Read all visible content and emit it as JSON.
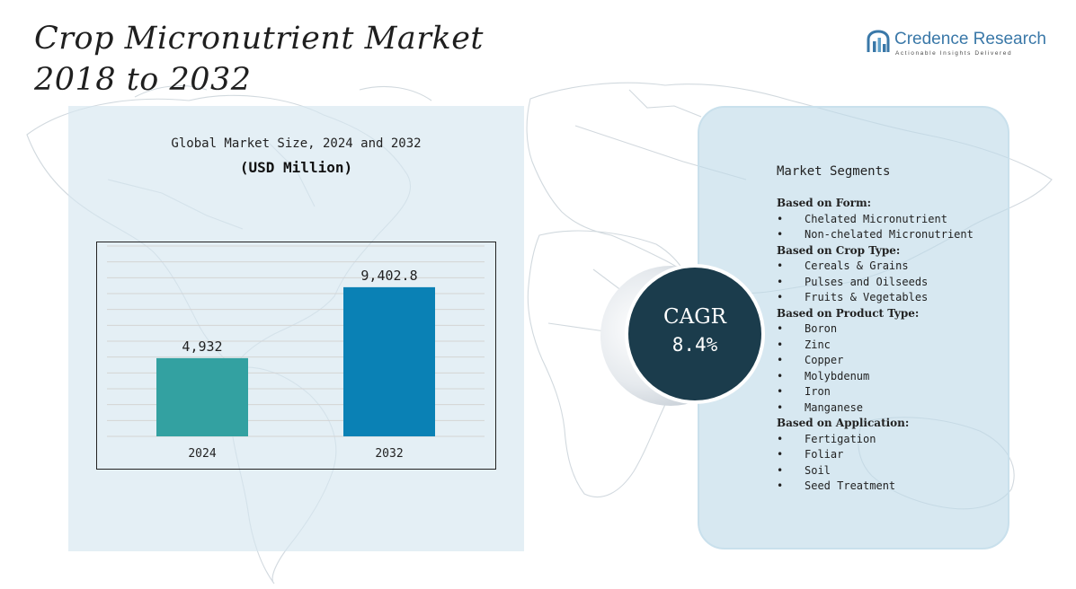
{
  "title": {
    "line1": "Crop Micronutrient Market",
    "line2": "2018 to 2032"
  },
  "brand": {
    "name": "Credence Research",
    "tagline": "Actionable Insights Delivered"
  },
  "chart_heading": "Global Market Size, 2024 and 2032",
  "chart_unit": "(USD Million)",
  "colors": {
    "bar_2024": "#33a1a1",
    "bar_2032": "#0a81b5",
    "cagr_circle": "#1b3c4c",
    "gridline": "#d4d4d4"
  },
  "chart_data": {
    "type": "bar",
    "title": "Global Market Size, 2024 and 2032",
    "xlabel": "",
    "ylabel": "(USD Million)",
    "categories": [
      "2024",
      "2032"
    ],
    "values": [
      4932,
      9402.8
    ],
    "value_labels": [
      "4,932",
      "9,402.8"
    ],
    "ylim": [
      0,
      12000
    ],
    "grid": true,
    "legend": "none"
  },
  "cagr": {
    "label": "CAGR",
    "value": "8.4%"
  },
  "segments": {
    "title": "Market Segments",
    "groups": [
      {
        "name": "Based on Form:",
        "items": [
          "Chelated Micronutrient",
          "Non-chelated Micronutrient"
        ]
      },
      {
        "name": "Based on Crop Type:",
        "items": [
          "Cereals & Grains",
          "Pulses and Oilseeds",
          "Fruits & Vegetables"
        ]
      },
      {
        "name": "Based on Product Type:",
        "items": [
          "Boron",
          "Zinc",
          "Copper",
          "Molybdenum",
          "Iron",
          "Manganese"
        ]
      },
      {
        "name": "Based on Application:",
        "items": [
          "Fertigation",
          "Foliar",
          "Soil",
          "Seed Treatment"
        ]
      }
    ]
  }
}
